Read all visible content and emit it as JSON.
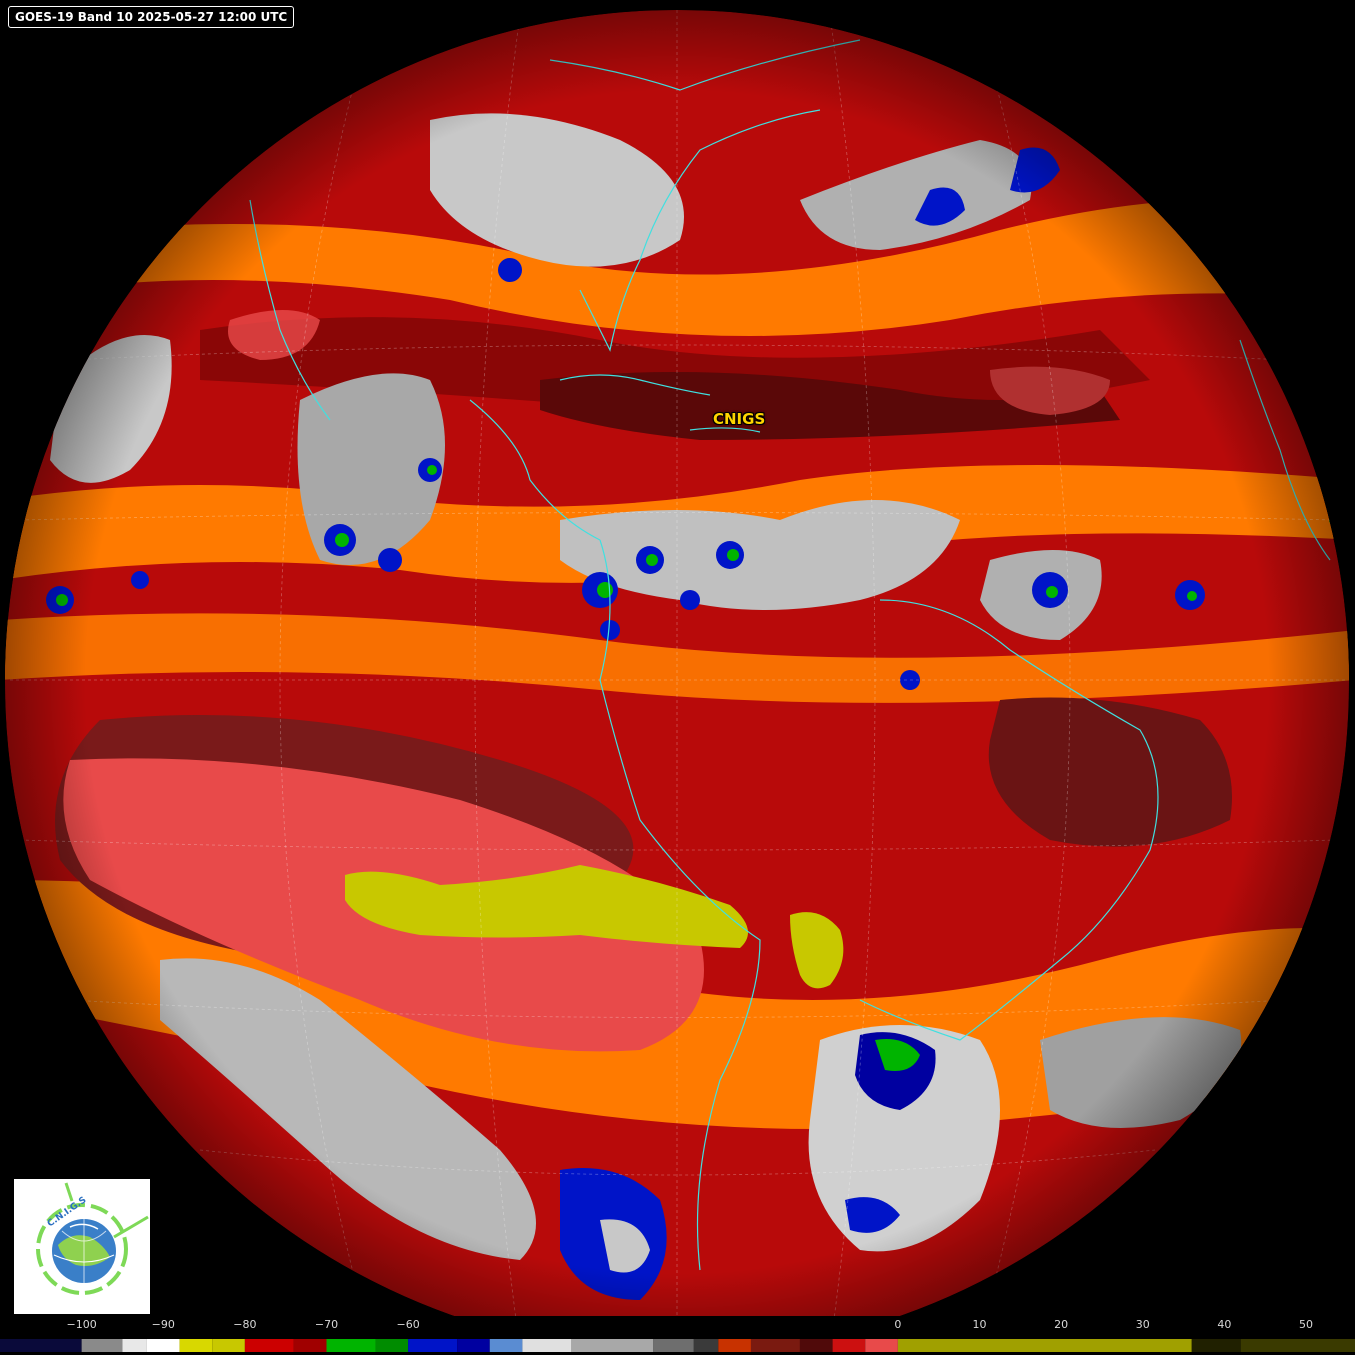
{
  "image": {
    "title": "GOES-19 Band 10 2025-05-27 12:00 UTC",
    "place_label": "CNIGS",
    "logo_name": "cnigs-logo",
    "logo_text": "C.N.I.G.S"
  },
  "colorbar": {
    "tick_labels": [
      "−100",
      "−90",
      "−80",
      "−70",
      "−60",
      "0",
      "10",
      "20",
      "30",
      "40",
      "50"
    ],
    "tick_values": [
      -100,
      -90,
      -80,
      -70,
      -60,
      0,
      10,
      20,
      30,
      40,
      50
    ],
    "range": [
      -110,
      56
    ],
    "segments": [
      {
        "from": -110,
        "to": -100,
        "color": "#0a0a3a"
      },
      {
        "from": -100,
        "to": -95,
        "color": "#8a8a8a"
      },
      {
        "from": -95,
        "to": -92,
        "color": "#e8e8e8"
      },
      {
        "from": -92,
        "to": -88,
        "color": "#ffffff"
      },
      {
        "from": -88,
        "to": -84,
        "color": "#d8d800"
      },
      {
        "from": -84,
        "to": -80,
        "color": "#c8c800"
      },
      {
        "from": -80,
        "to": -74,
        "color": "#cc0000"
      },
      {
        "from": -74,
        "to": -70,
        "color": "#a00000"
      },
      {
        "from": -70,
        "to": -64,
        "color": "#00b400"
      },
      {
        "from": -64,
        "to": -60,
        "color": "#008c00"
      },
      {
        "from": -60,
        "to": -54,
        "color": "#0014c8"
      },
      {
        "from": -54,
        "to": -50,
        "color": "#0000a0"
      },
      {
        "from": -50,
        "to": -46,
        "color": "#5a8cd2"
      },
      {
        "from": -46,
        "to": -40,
        "color": "#e0e0e0"
      },
      {
        "from": -40,
        "to": -30,
        "color": "#a8a8a8"
      },
      {
        "from": -30,
        "to": -25,
        "color": "#6e6e6e"
      },
      {
        "from": -25,
        "to": -22,
        "color": "#3a3a3a"
      },
      {
        "from": -22,
        "to": -18,
        "color": "#c83200"
      },
      {
        "from": -18,
        "to": -12,
        "color": "#7a1a10"
      },
      {
        "from": -12,
        "to": -8,
        "color": "#500a0a"
      },
      {
        "from": -8,
        "to": -4,
        "color": "#cc1010"
      },
      {
        "from": -4,
        "to": 0,
        "color": "#e84a4a"
      },
      {
        "from": 0,
        "to": 36,
        "color": "#a0a000"
      },
      {
        "from": 36,
        "to": 42,
        "color": "#202000"
      },
      {
        "from": 42,
        "to": 56,
        "color": "#3a3a00"
      }
    ]
  },
  "colors": {
    "dry_high": "#c8c800",
    "dry": "#e84a4a",
    "warm": "#cc1010",
    "mid": "#ff7a00",
    "cold": "#c8c8c8",
    "colder": "#0014c8",
    "coldest": "#00b400",
    "coast": "#40e0e0"
  }
}
